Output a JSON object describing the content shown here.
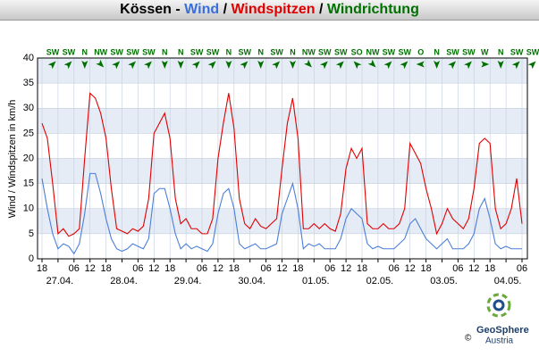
{
  "chart_data": {
    "type": "line",
    "title": "Kössen",
    "title_separator": " - ",
    "legend_separator": " / ",
    "direction_title": "Windrichtung",
    "direction_color": "#007000",
    "ylabel": "Wind / Windspitzen in km/h",
    "ylim": [
      0,
      40
    ],
    "yticks": [
      0,
      5,
      10,
      15,
      20,
      25,
      30,
      35,
      40
    ],
    "grid": true,
    "categories": [
      "18",
      null,
      null,
      "27.04.",
      null,
      null,
      "06",
      null,
      null,
      "12",
      null,
      null,
      "18",
      null,
      null,
      "28.04.",
      null,
      null,
      "06",
      null,
      null,
      "12",
      null,
      null,
      "18",
      null,
      null,
      "29.04.",
      null,
      null,
      "06",
      null,
      null,
      "12",
      null,
      null,
      "18",
      null,
      null,
      "30.04.",
      null,
      null,
      "06",
      null,
      null,
      "12",
      null,
      null,
      "18",
      null,
      null,
      "01.05.",
      null,
      null,
      "06",
      null,
      null,
      "12",
      null,
      null,
      "18",
      null,
      null,
      "02.05.",
      null,
      null,
      "06",
      null,
      null,
      "12",
      null,
      null,
      "18",
      null,
      null,
      "03.05.",
      null,
      null,
      "06",
      null,
      null,
      "12",
      null,
      null,
      "18",
      null,
      null,
      "04.05.",
      null,
      null,
      "06"
    ],
    "series": [
      {
        "name": "Wind",
        "color": "#4a7fd8",
        "values": [
          16,
          10,
          5,
          2,
          3,
          2.5,
          1,
          3,
          9,
          17,
          17,
          13,
          8,
          4,
          2,
          1.5,
          2,
          3,
          2.5,
          2,
          4,
          13,
          14,
          14,
          10,
          5,
          2,
          3,
          2,
          2.5,
          2,
          1.5,
          3,
          9,
          13,
          14,
          10,
          3,
          2,
          2.5,
          3,
          2,
          2,
          2.5,
          3,
          9,
          12,
          15,
          10,
          2,
          3,
          2.5,
          3,
          2,
          2,
          2,
          4,
          8,
          10,
          9,
          8,
          3,
          2,
          2.5,
          2,
          2,
          2,
          3,
          4,
          7,
          8,
          6,
          4,
          3,
          2,
          3,
          4,
          2,
          2,
          2,
          3,
          5,
          10,
          12,
          8,
          3,
          2,
          2.5,
          2,
          2,
          2
        ]
      },
      {
        "name": "Windspitzen",
        "color": "#e00000",
        "values": [
          27,
          24,
          15,
          5,
          6,
          4.5,
          5,
          6,
          20,
          33,
          32,
          29,
          24,
          14,
          6,
          5.5,
          5,
          6,
          5.5,
          6.5,
          12,
          25,
          27,
          29,
          24,
          12,
          7,
          8,
          6,
          6,
          5,
          5,
          8,
          20,
          27,
          33,
          26,
          12,
          7,
          6,
          8,
          6.5,
          6,
          7,
          8,
          18,
          27,
          32,
          24,
          6,
          6,
          7,
          6,
          7,
          6,
          5.5,
          9,
          18,
          22,
          20,
          22,
          7,
          6,
          6,
          7,
          6,
          6,
          7,
          10,
          23,
          21,
          19,
          14,
          10,
          5,
          7,
          10,
          8,
          7,
          6,
          8,
          14,
          23,
          24,
          23,
          10,
          6,
          7,
          10,
          16,
          7
        ]
      }
    ],
    "directions": [
      "SW",
      "SW",
      "N",
      "NW",
      "SW",
      "SW",
      "SW",
      "N",
      "N",
      "SW",
      "SW",
      "N",
      "SW",
      "N",
      "SW",
      "N",
      "NW",
      "SW",
      "SW",
      "SO",
      "NW",
      "SW",
      "SW",
      "O",
      "N",
      "SW",
      "SW",
      "W",
      "N",
      "SW",
      "SW"
    ],
    "logo": {
      "name": "GeoSphere",
      "sub": "Austria",
      "copyright": "©"
    }
  }
}
